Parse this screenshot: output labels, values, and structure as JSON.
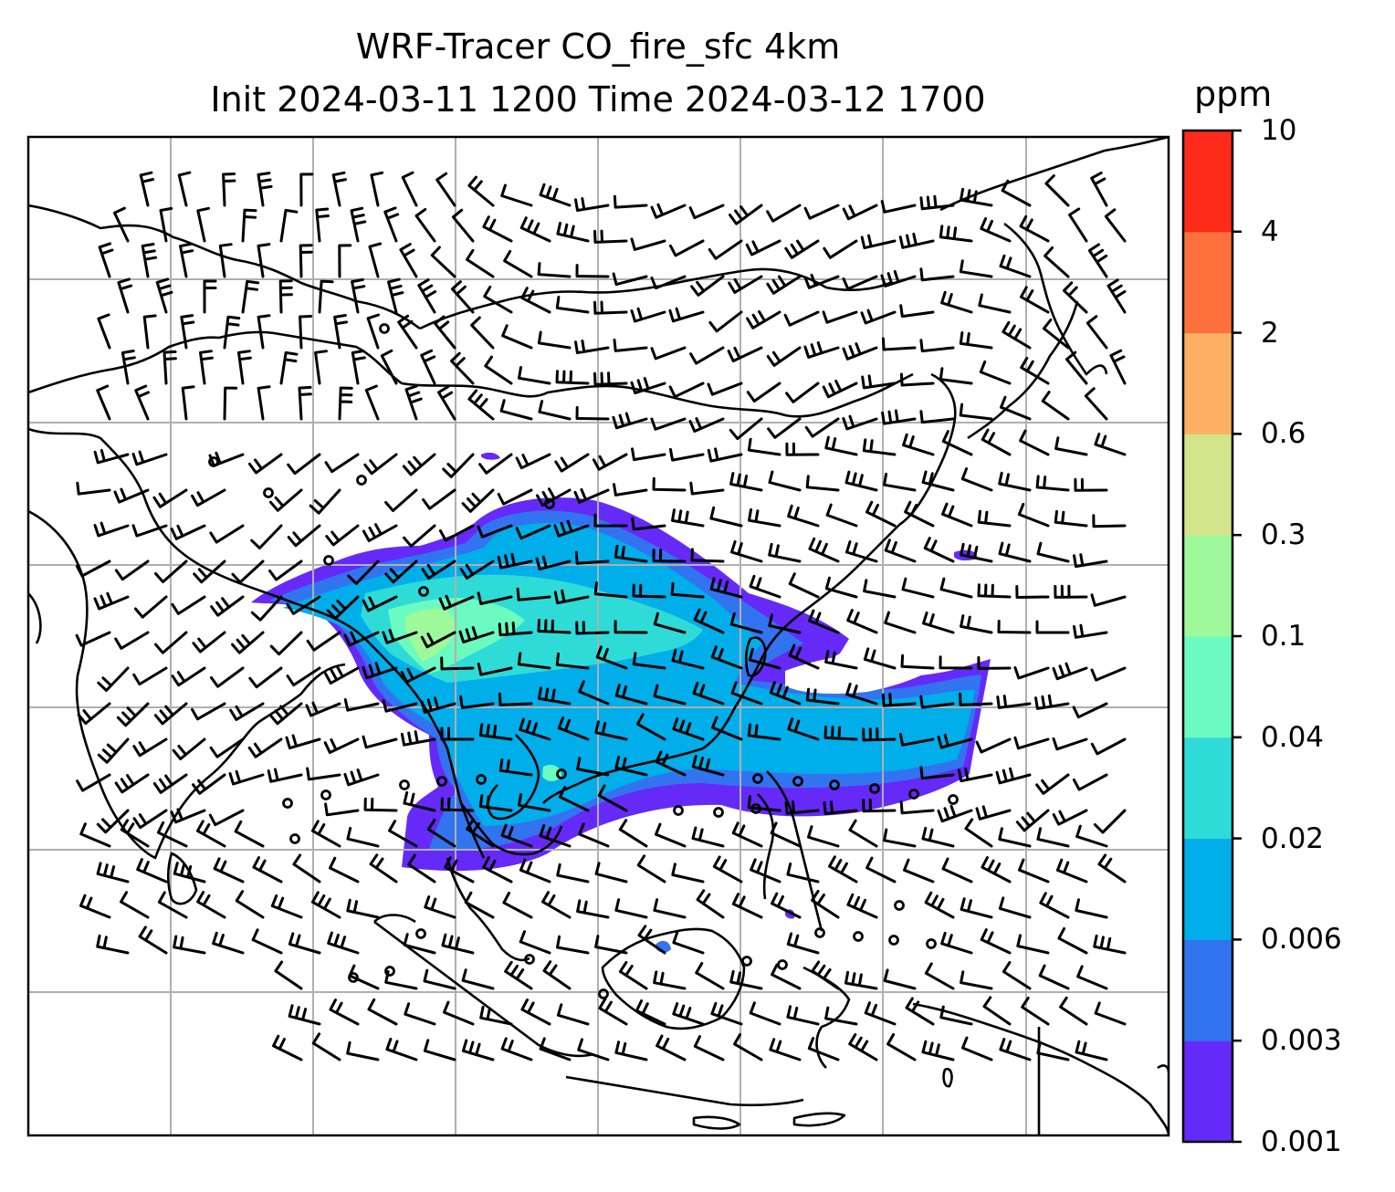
{
  "title": {
    "line1": "WRF-Tracer CO_fire_sfc 4km",
    "line2": "Init 2024-03-11 1200 Time 2024-03-12 1700"
  },
  "colorbar": {
    "unit": "ppm",
    "ticks": [
      "0.001",
      "0.003",
      "0.006",
      "0.02",
      "0.04",
      "0.1",
      "0.3",
      "0.6",
      "2",
      "4",
      "10"
    ],
    "colors": [
      "#652AF8",
      "#3273F0",
      "#00AEEA",
      "#2FDBD7",
      "#6BFBC0",
      "#9EF99B",
      "#D3E38A",
      "#FDB063",
      "#FE703C",
      "#FF2B1A"
    ]
  },
  "map": {
    "coastline_color": "#000000",
    "grid_color": "#b0b0b0",
    "plume_shading": "CO fire tracer concentration",
    "wind_barbs": "surface wind barbs"
  }
}
